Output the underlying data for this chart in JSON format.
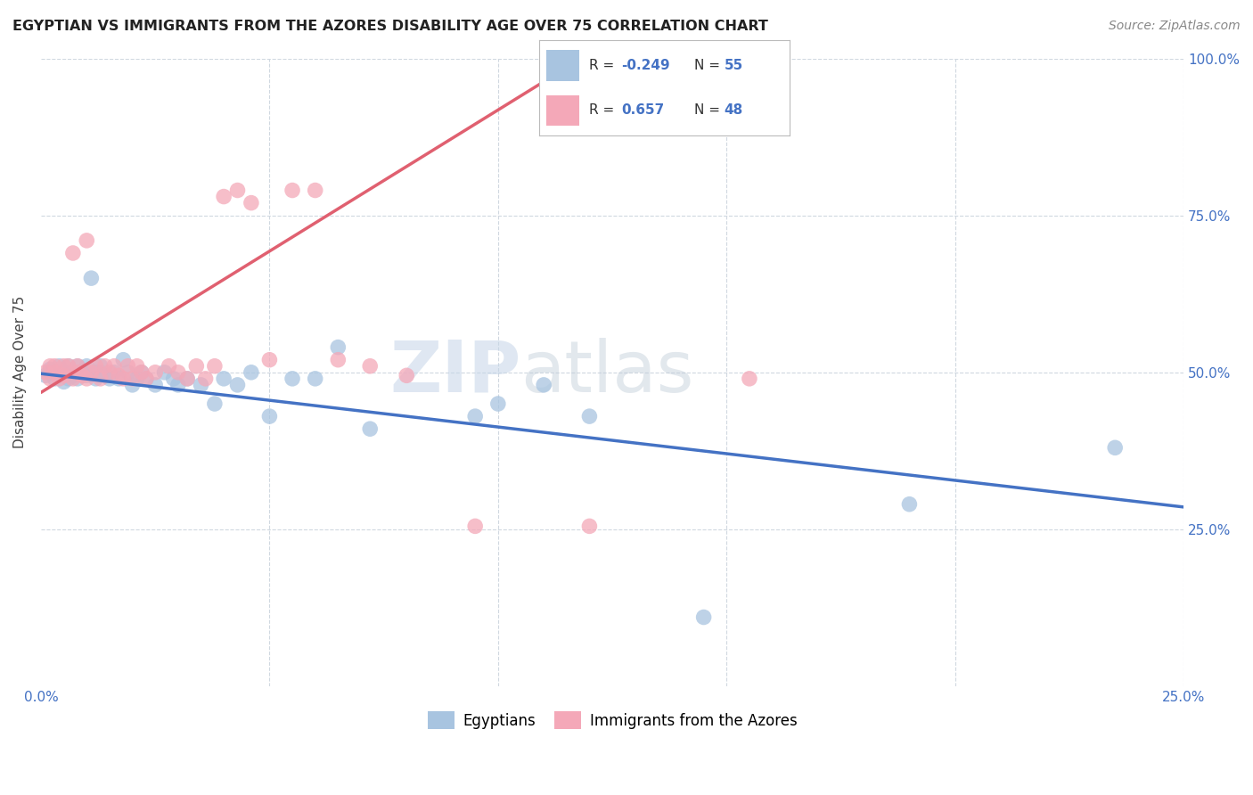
{
  "title": "EGYPTIAN VS IMMIGRANTS FROM THE AZORES DISABILITY AGE OVER 75 CORRELATION CHART",
  "source": "Source: ZipAtlas.com",
  "ylabel": "Disability Age Over 75",
  "xlim": [
    0.0,
    0.25
  ],
  "ylim": [
    0.0,
    1.0
  ],
  "legend_r_egyptian": "-0.249",
  "legend_n_egyptian": "55",
  "legend_r_azores": "0.657",
  "legend_n_azores": "48",
  "egyptian_color": "#a8c4e0",
  "azores_color": "#f4a8b8",
  "trend_egyptian_color": "#4472c4",
  "trend_azores_color": "#e06070",
  "watermark_zip": "ZIP",
  "watermark_atlas": "atlas",
  "background_color": "#ffffff",
  "grid_color": "#d0d8e0",
  "egyptians_label": "Egyptians",
  "azores_label": "Immigrants from the Azores",
  "egyptian_scatter_x": [
    0.001,
    0.002,
    0.002,
    0.003,
    0.003,
    0.004,
    0.004,
    0.005,
    0.005,
    0.006,
    0.006,
    0.007,
    0.007,
    0.008,
    0.008,
    0.009,
    0.01,
    0.01,
    0.011,
    0.012,
    0.012,
    0.013,
    0.013,
    0.014,
    0.015,
    0.016,
    0.017,
    0.018,
    0.019,
    0.02,
    0.021,
    0.022,
    0.023,
    0.025,
    0.027,
    0.029,
    0.03,
    0.032,
    0.035,
    0.038,
    0.04,
    0.043,
    0.046,
    0.05,
    0.055,
    0.06,
    0.065,
    0.072,
    0.095,
    0.1,
    0.11,
    0.12,
    0.145,
    0.19,
    0.235
  ],
  "egyptian_scatter_y": [
    0.495,
    0.5,
    0.505,
    0.49,
    0.5,
    0.495,
    0.51,
    0.485,
    0.5,
    0.49,
    0.51,
    0.495,
    0.5,
    0.49,
    0.51,
    0.5,
    0.495,
    0.51,
    0.65,
    0.49,
    0.5,
    0.5,
    0.51,
    0.495,
    0.49,
    0.5,
    0.49,
    0.52,
    0.5,
    0.48,
    0.49,
    0.5,
    0.49,
    0.48,
    0.5,
    0.49,
    0.48,
    0.49,
    0.48,
    0.45,
    0.49,
    0.48,
    0.5,
    0.43,
    0.49,
    0.49,
    0.54,
    0.41,
    0.43,
    0.45,
    0.48,
    0.43,
    0.11,
    0.29,
    0.38
  ],
  "azores_scatter_x": [
    0.001,
    0.002,
    0.002,
    0.003,
    0.003,
    0.004,
    0.005,
    0.005,
    0.006,
    0.007,
    0.007,
    0.008,
    0.008,
    0.009,
    0.01,
    0.01,
    0.011,
    0.012,
    0.013,
    0.014,
    0.015,
    0.016,
    0.017,
    0.018,
    0.019,
    0.02,
    0.021,
    0.022,
    0.023,
    0.025,
    0.028,
    0.03,
    0.032,
    0.034,
    0.036,
    0.038,
    0.04,
    0.043,
    0.046,
    0.05,
    0.055,
    0.06,
    0.065,
    0.072,
    0.08,
    0.095,
    0.12,
    0.155
  ],
  "azores_scatter_y": [
    0.5,
    0.51,
    0.49,
    0.5,
    0.51,
    0.49,
    0.51,
    0.495,
    0.51,
    0.69,
    0.49,
    0.5,
    0.51,
    0.495,
    0.71,
    0.49,
    0.5,
    0.51,
    0.49,
    0.51,
    0.5,
    0.51,
    0.495,
    0.49,
    0.51,
    0.49,
    0.51,
    0.5,
    0.49,
    0.5,
    0.51,
    0.5,
    0.49,
    0.51,
    0.49,
    0.51,
    0.78,
    0.79,
    0.77,
    0.52,
    0.79,
    0.79,
    0.52,
    0.51,
    0.495,
    0.255,
    0.255,
    0.49
  ],
  "trend_egyptian_slope": -0.85,
  "trend_egyptian_intercept": 0.498,
  "trend_azores_slope": 4.5,
  "trend_azores_intercept": 0.468
}
